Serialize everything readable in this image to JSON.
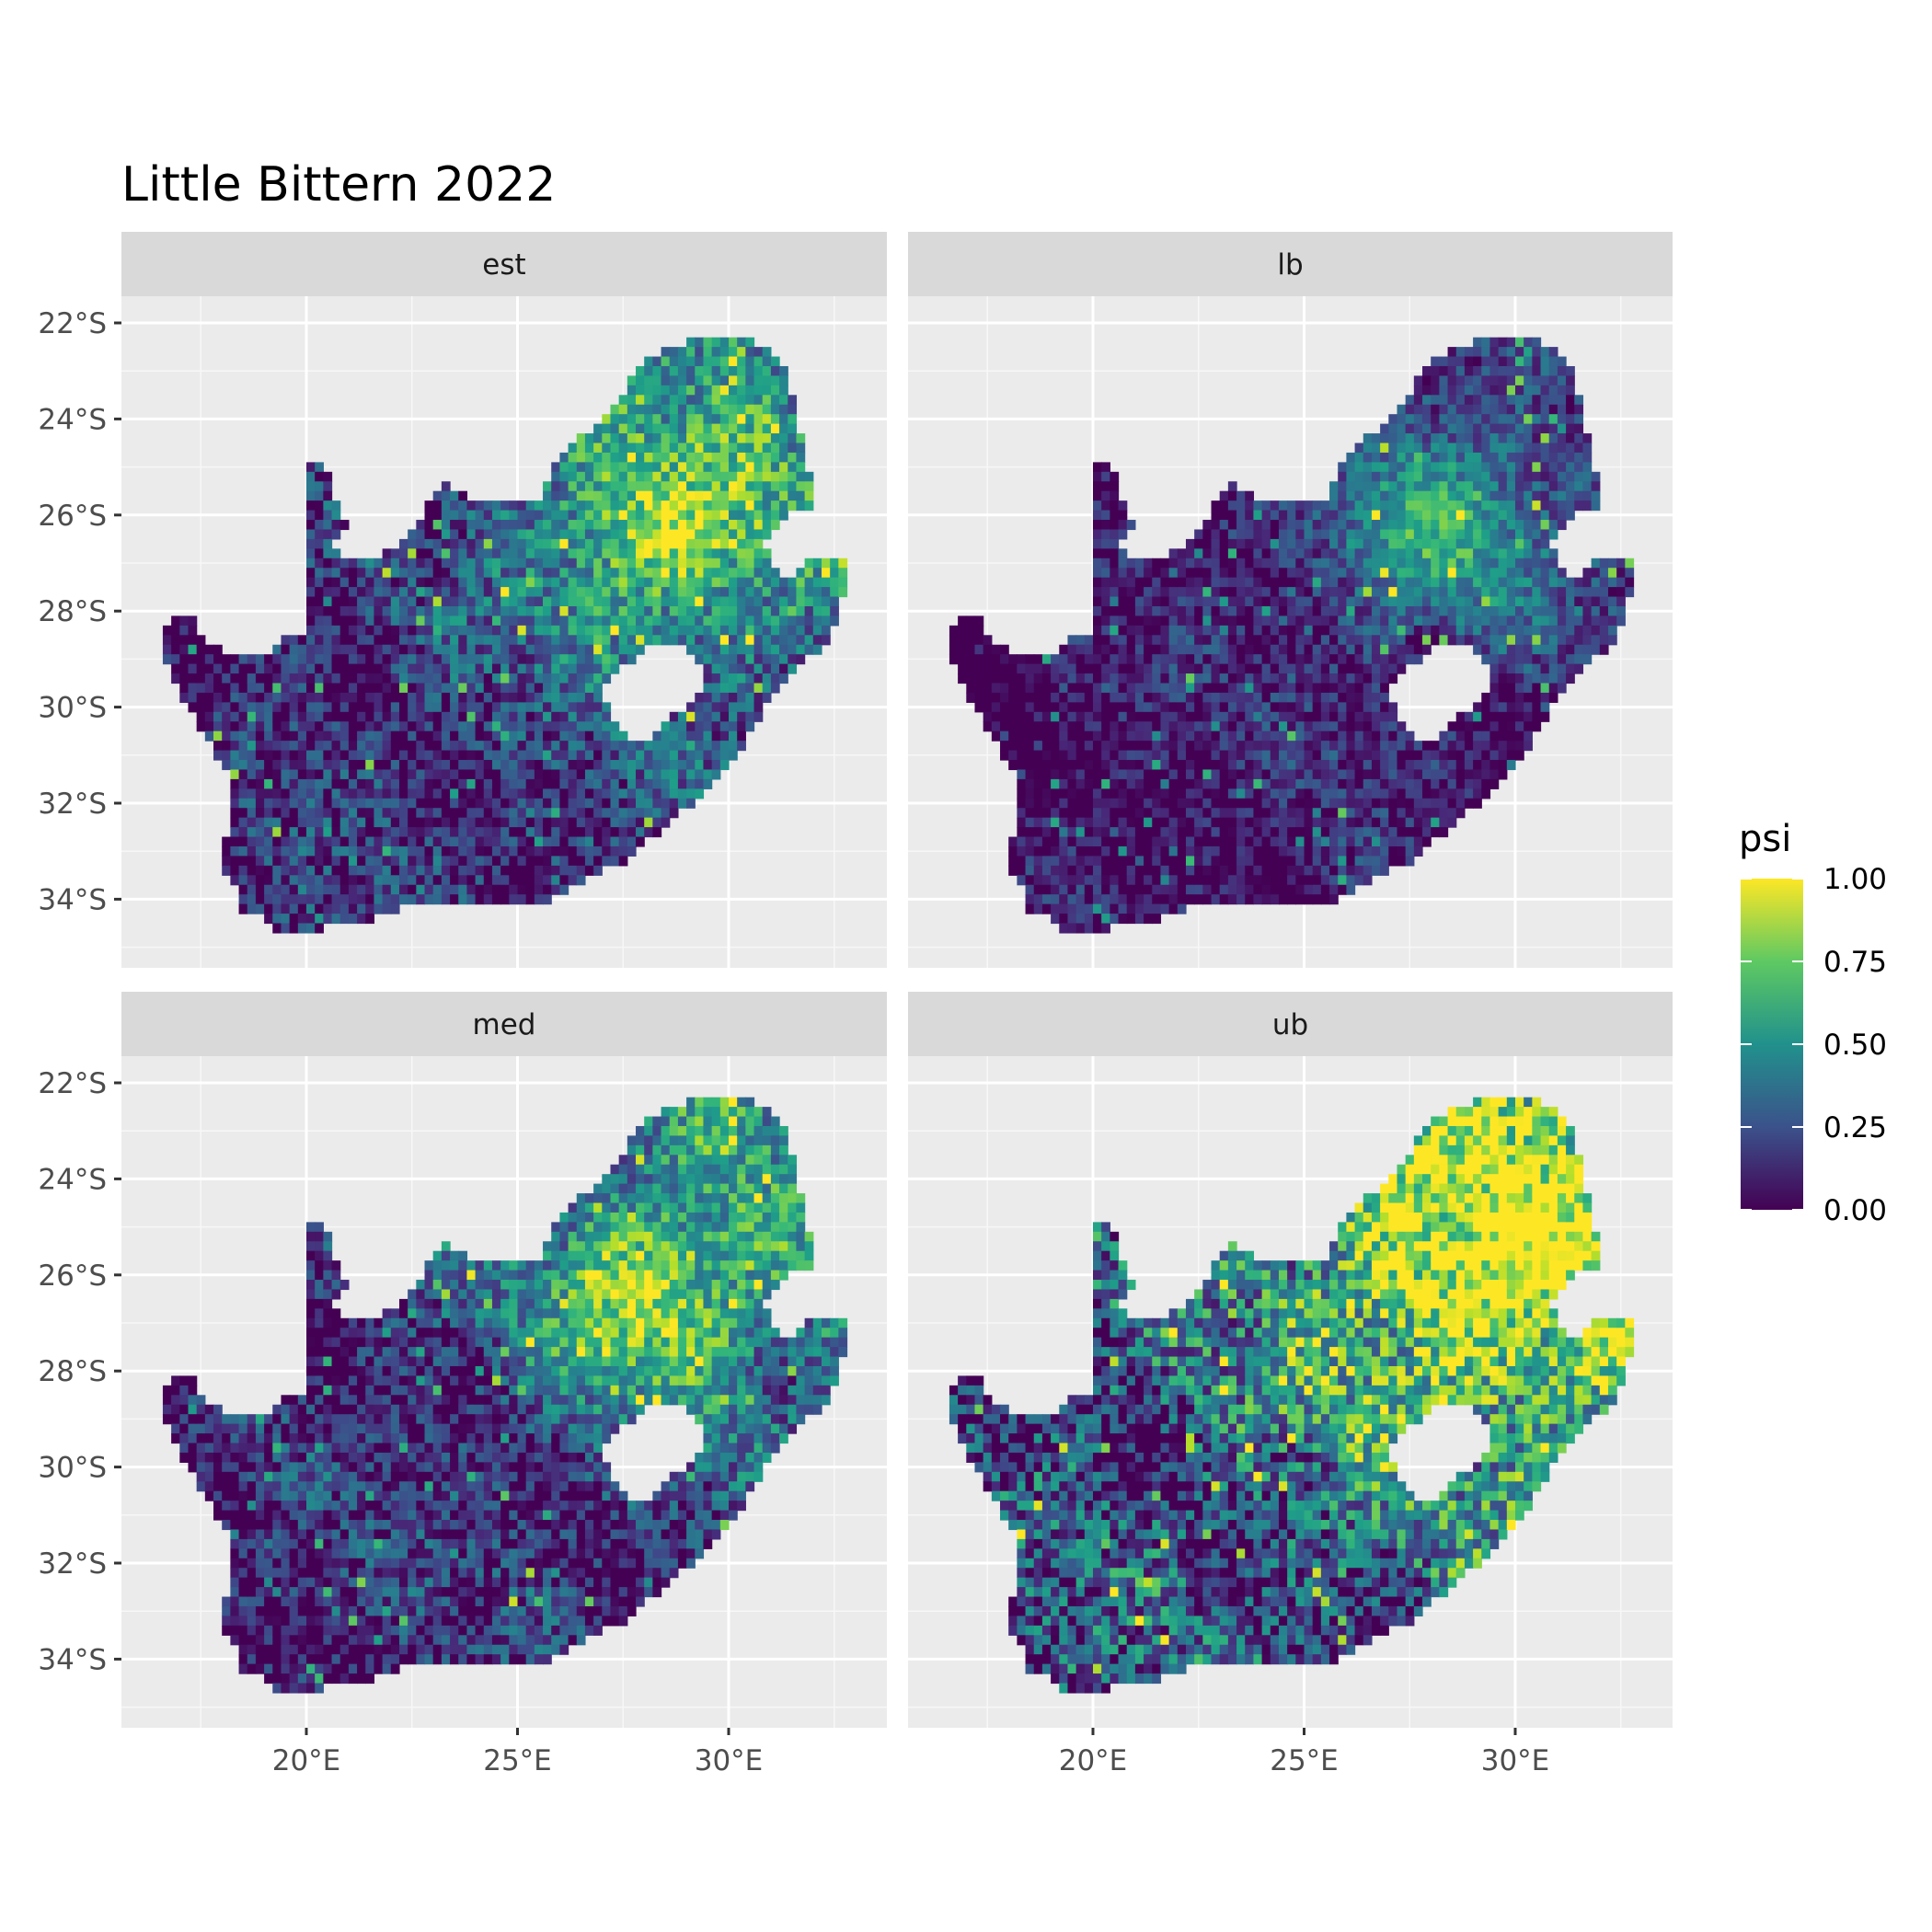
{
  "title": "Little Bittern 2022",
  "chart_data": {
    "type": "heatmap",
    "title": "Little Bittern 2022",
    "facets": [
      "est",
      "lb",
      "med",
      "ub"
    ],
    "fill_variable": "psi",
    "fill_scale": {
      "name": "viridis",
      "limits": [
        0,
        1
      ],
      "breaks": [
        "0.00",
        "0.25",
        "0.50",
        "0.75",
        "1.00"
      ],
      "colors": [
        "#440154",
        "#3b528b",
        "#21918c",
        "#5ec962",
        "#fde725"
      ]
    },
    "x_axis": {
      "ticks": [
        "20°E",
        "25°E",
        "30°E"
      ],
      "values": [
        20,
        25,
        30
      ],
      "range": [
        15.6,
        33.8
      ]
    },
    "y_axis": {
      "ticks": [
        "22°S",
        "24°S",
        "26°S",
        "28°S",
        "30°S",
        "32°S",
        "34°S"
      ],
      "values": [
        -22,
        -24,
        -26,
        -28,
        -30,
        -32,
        -34
      ],
      "range": [
        -35.6,
        -21.6
      ]
    },
    "grid": true,
    "legend_position": "right",
    "facet_mean_psi": {
      "est": 0.35,
      "lb": 0.15,
      "med": 0.33,
      "ub": 0.65
    },
    "facet_hotspot_psi": {
      "est": 0.95,
      "lb": 0.65,
      "med": 0.95,
      "ub": 1.0
    }
  }
}
